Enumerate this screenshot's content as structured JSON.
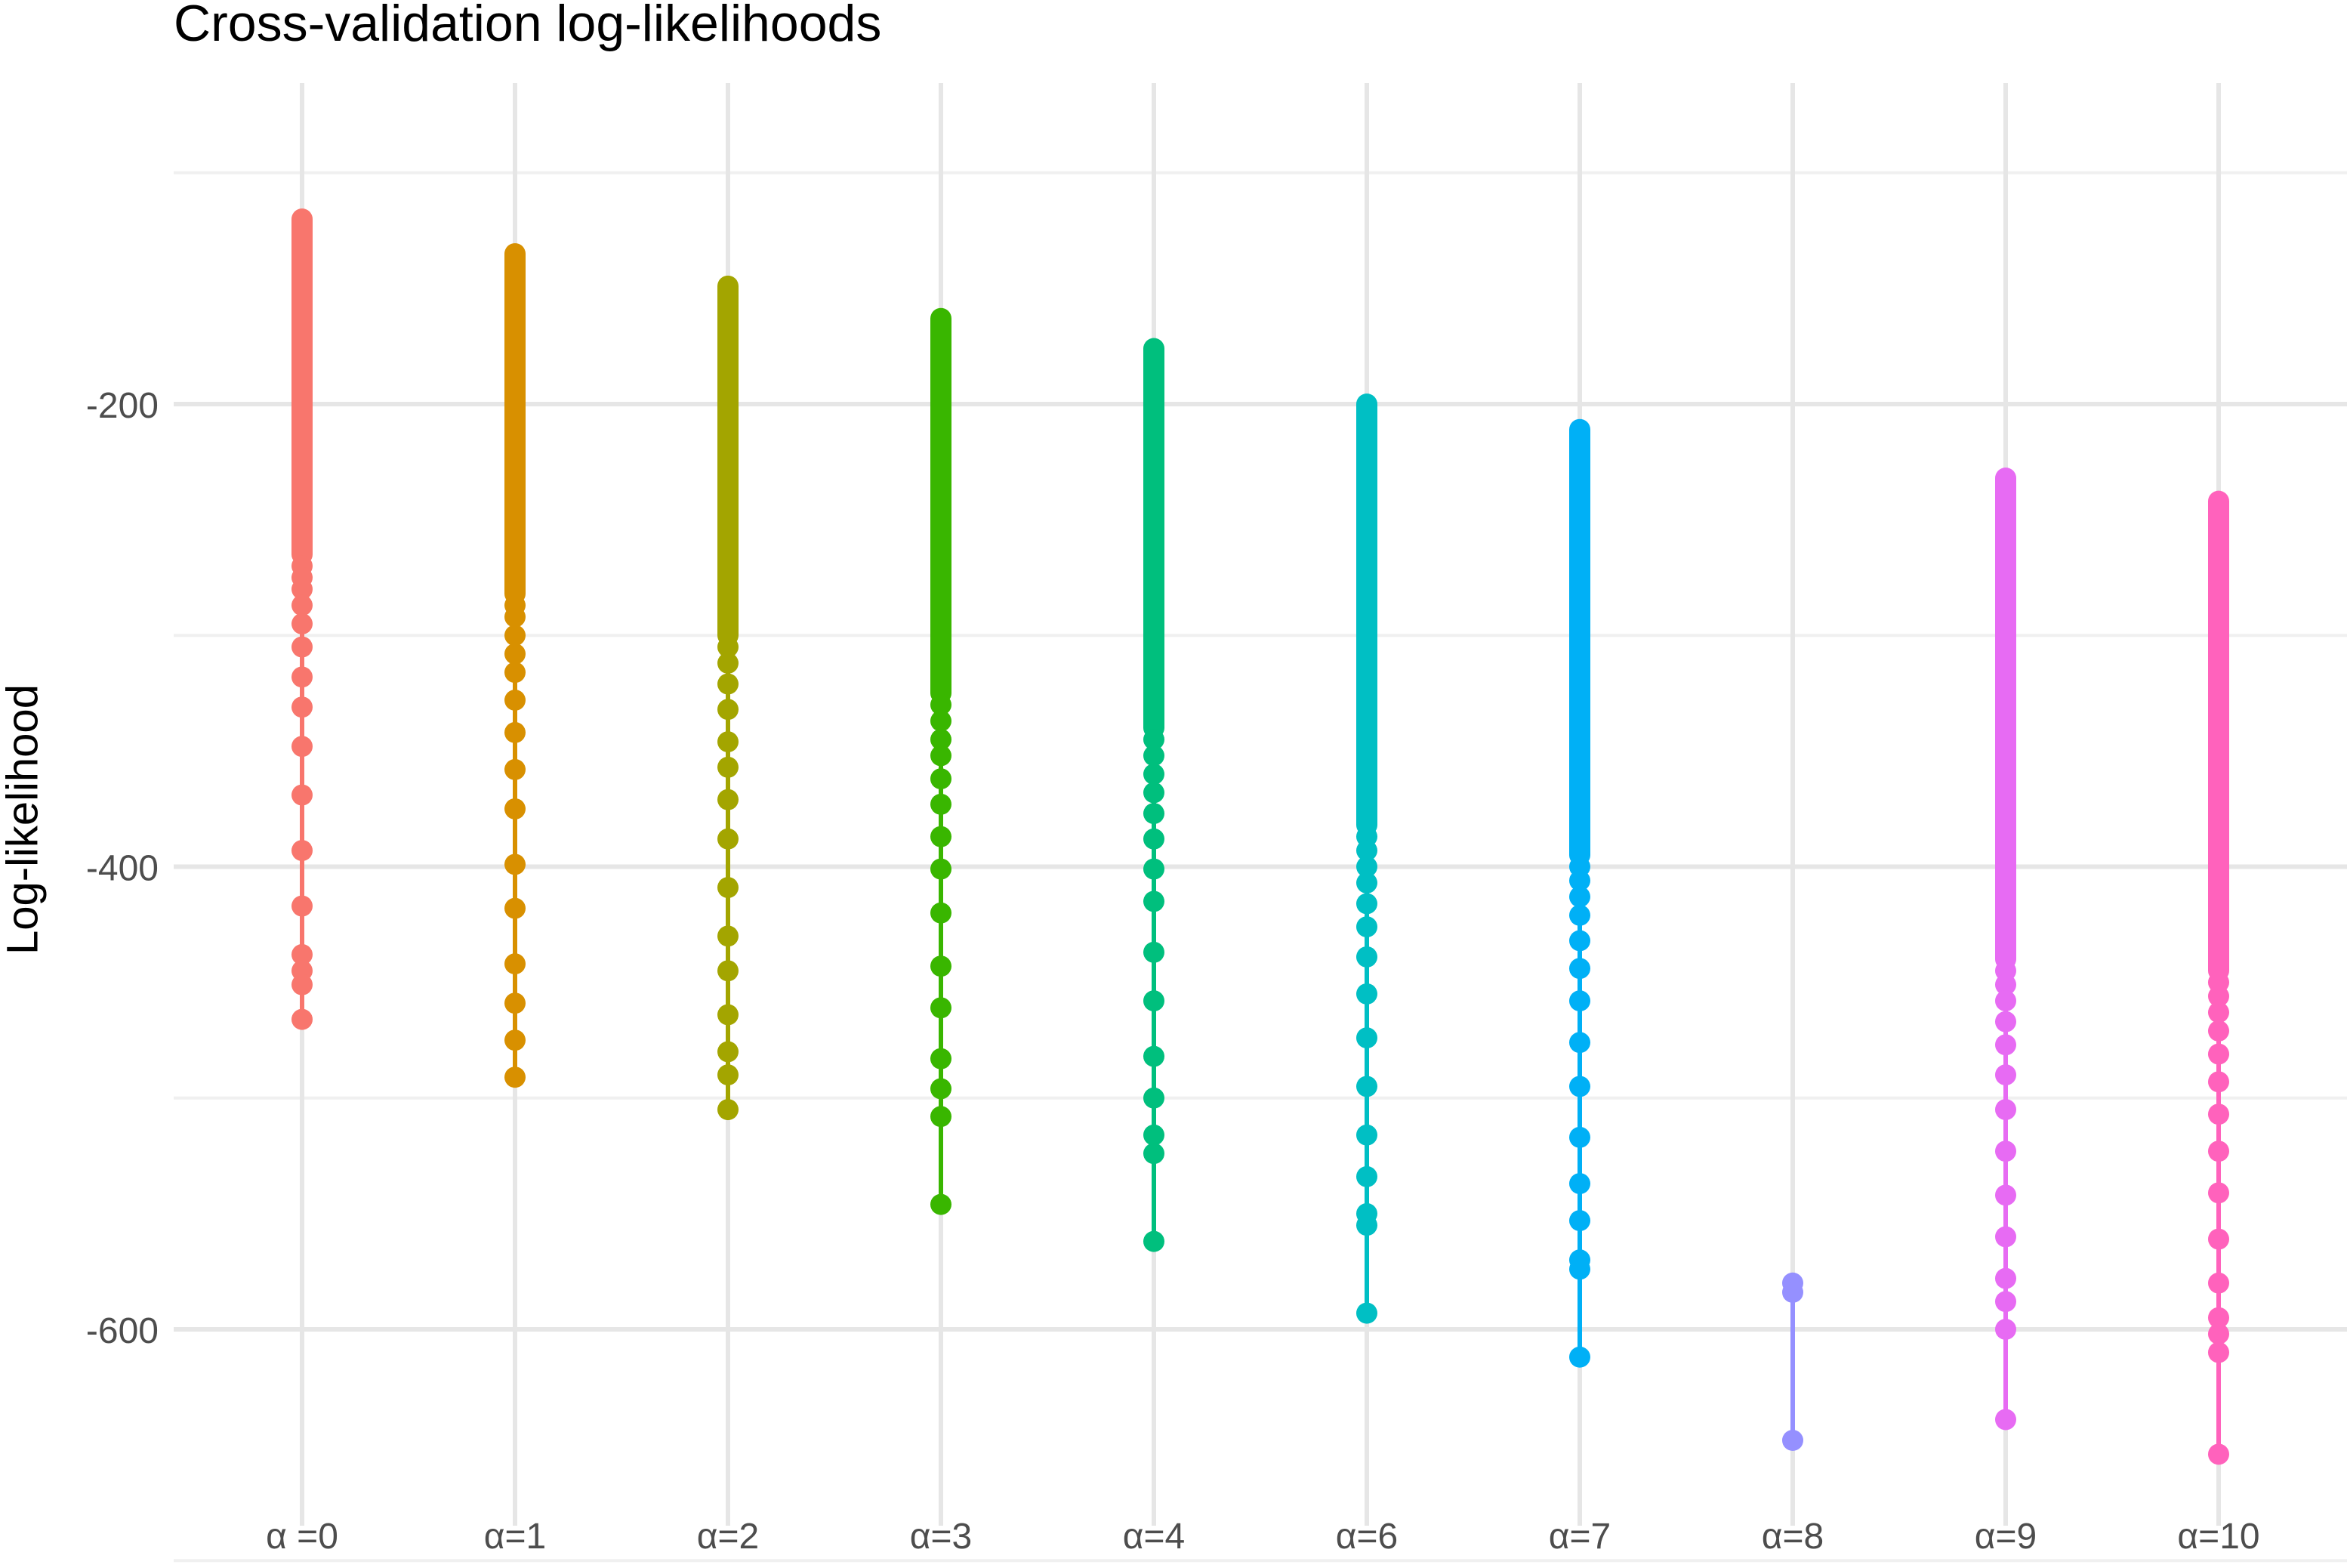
{
  "chart_data": {
    "type": "scatter",
    "title": "Cross-validation log-likelihoods",
    "xlabel": "",
    "ylabel": "Log-likelihood",
    "ylim": [
      -700,
      -80
    ],
    "yticks": [
      -200,
      -400,
      -600
    ],
    "grid": true,
    "legend": "none",
    "categories": [
      "α =0",
      "α=1",
      "α=2",
      "α=3",
      "α=4",
      "α=6",
      "α=7",
      "α=8",
      "α=9",
      "α=10"
    ],
    "series": [
      {
        "category": "α =0",
        "color": "#F8766D",
        "dense_range": [
          -120,
          -265
        ],
        "points": [
          -270,
          -275,
          -280,
          -287,
          -295,
          -305,
          -318,
          -331,
          -348,
          -369,
          -393,
          -417,
          -438,
          -445,
          -451,
          -466
        ]
      },
      {
        "category": "α=1",
        "color": "#D89000",
        "dense_range": [
          -135,
          -282
        ],
        "points": [
          -287,
          -292,
          -300,
          -308,
          -316,
          -328,
          -342,
          -358,
          -375,
          -399,
          -418,
          -442,
          -459,
          -475,
          -491
        ]
      },
      {
        "category": "α=2",
        "color": "#A3A500",
        "dense_range": [
          -149,
          -300
        ],
        "points": [
          -305,
          -312,
          -321,
          -332,
          -346,
          -357,
          -371,
          -388,
          -409,
          -430,
          -445,
          -464,
          -480,
          -490,
          -505
        ]
      },
      {
        "category": "α=3",
        "color": "#39B600",
        "dense_range": [
          -163,
          -325
        ],
        "points": [
          -330,
          -337,
          -345,
          -352,
          -362,
          -373,
          -387,
          -401,
          -420,
          -443,
          -461,
          -483,
          -496,
          -508,
          -546
        ]
      },
      {
        "category": "α=4",
        "color": "#00BF7D",
        "dense_range": [
          -176,
          -340
        ],
        "points": [
          -345,
          -352,
          -360,
          -368,
          -377,
          -388,
          -401,
          -415,
          -437,
          -458,
          -482,
          -500,
          -516,
          -524,
          -562
        ]
      },
      {
        "category": "α=6",
        "color": "#00BFC4",
        "dense_range": [
          -200,
          -382
        ],
        "points": [
          -387,
          -393,
          -400,
          -407,
          -416,
          -426,
          -439,
          -455,
          -474,
          -495,
          -516,
          -534,
          -550,
          -555,
          -593
        ]
      },
      {
        "category": "α=7",
        "color": "#00B0F6",
        "dense_range": [
          -211,
          -395
        ],
        "points": [
          -400,
          -406,
          -413,
          -421,
          -432,
          -444,
          -458,
          -476,
          -495,
          -517,
          -537,
          -553,
          -570,
          -574,
          -612
        ]
      },
      {
        "category": "α=8",
        "color": "#9590FF",
        "dense_range": null,
        "points": [
          -580,
          -584,
          -648
        ]
      },
      {
        "category": "α=9",
        "color": "#E76BF3",
        "dense_range": [
          -232,
          -440
        ],
        "points": [
          -445,
          -451,
          -458,
          -467,
          -477,
          -490,
          -505,
          -523,
          -542,
          -560,
          -578,
          -588,
          -600,
          -639
        ]
      },
      {
        "category": "α=10",
        "color": "#FF62BC",
        "dense_range": [
          -242,
          -445
        ],
        "points": [
          -450,
          -456,
          -463,
          -471,
          -481,
          -493,
          -507,
          -523,
          -541,
          -561,
          -580,
          -595,
          -602,
          -610,
          -654
        ]
      }
    ]
  }
}
